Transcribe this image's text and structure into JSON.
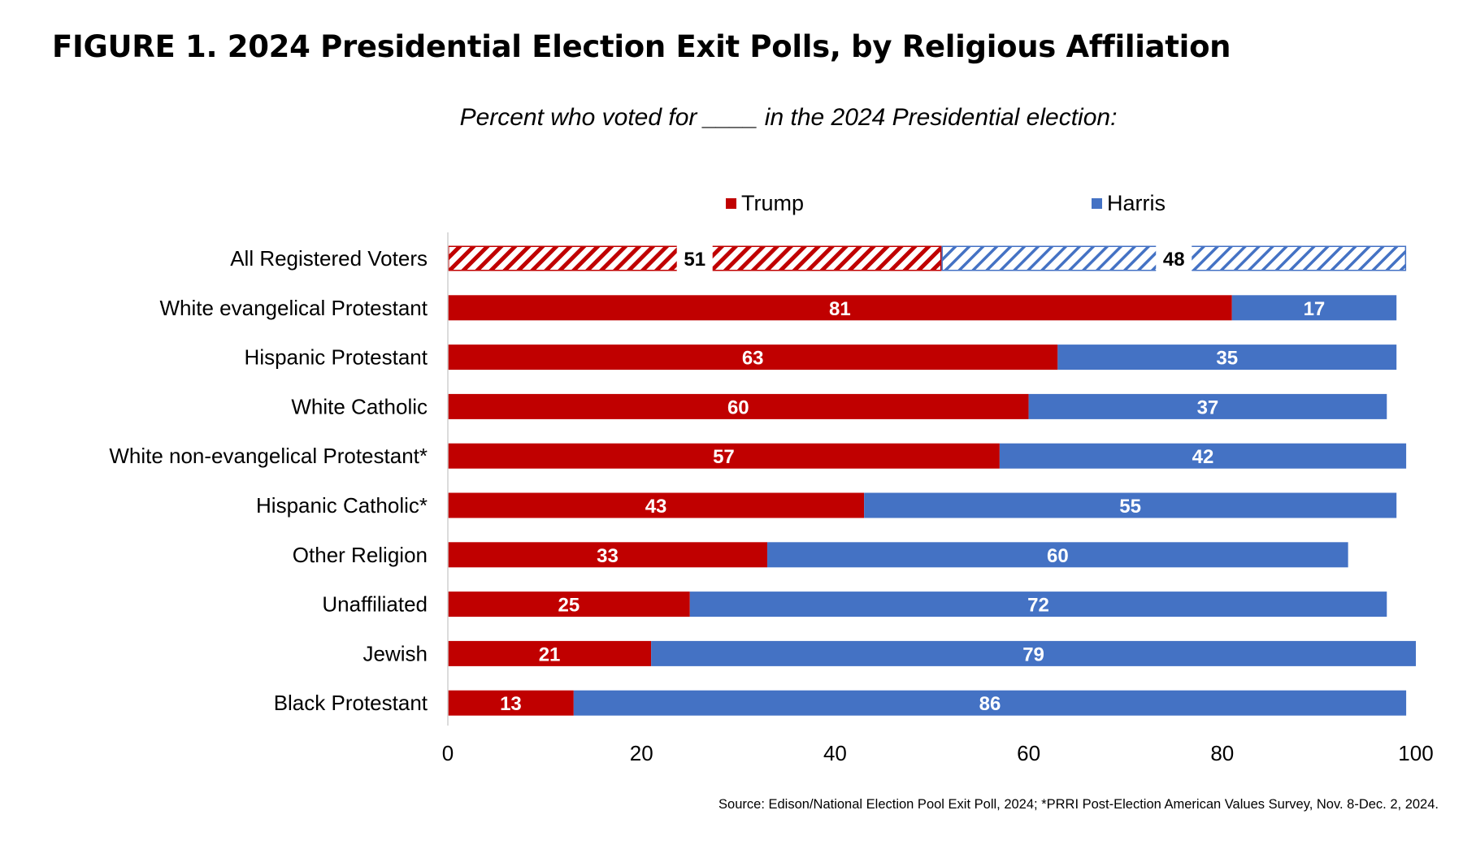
{
  "colors": {
    "trump": "#c00000",
    "harris": "#4472c4"
  },
  "chart_data": {
    "type": "bar",
    "orientation": "horizontal",
    "stacked": true,
    "title": "FIGURE 1. 2024 Presidential Election Exit Polls, by Religious Affiliation",
    "subtitle": "Percent who voted for ____ in the 2024 Presidential election:",
    "categories": [
      "All Registered Voters",
      "White evangelical Protestant",
      "Hispanic Protestant",
      "White Catholic",
      "White non-evangelical Protestant*",
      "Hispanic Catholic*",
      "Other Religion",
      "Unaffiliated",
      "Jewish",
      "Black Protestant"
    ],
    "series": [
      {
        "name": "Trump",
        "values": [
          51,
          81,
          63,
          60,
          57,
          43,
          33,
          25,
          21,
          13
        ]
      },
      {
        "name": "Harris",
        "values": [
          48,
          17,
          35,
          37,
          42,
          55,
          60,
          72,
          79,
          86
        ]
      }
    ],
    "hatched_categories": [
      "All Registered Voters"
    ],
    "xlim": [
      0,
      100
    ],
    "xticks": [
      0,
      20,
      40,
      60,
      80,
      100
    ],
    "grid": false,
    "legend_position": "top",
    "source": "Source: Edison/National Election Pool Exit Poll, 2024; *PRRI Post-Election American Values Survey, Nov. 8-Dec. 2, 2024."
  }
}
